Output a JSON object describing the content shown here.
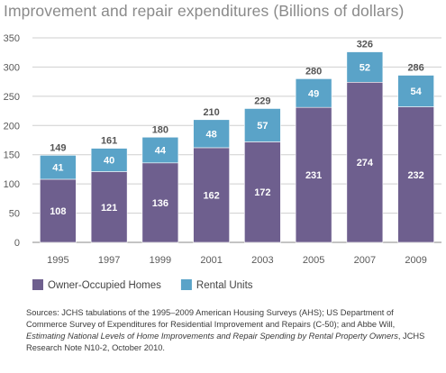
{
  "chart_data": {
    "type": "bar",
    "stacked": true,
    "title": "Improvement and repair expenditures (Billions of dollars)",
    "categories": [
      "1995",
      "1997",
      "1999",
      "2001",
      "2003",
      "2005",
      "2007",
      "2009"
    ],
    "series": [
      {
        "name": "Owner-Occupied Homes",
        "color": "#6e5f8e",
        "values": [
          108,
          121,
          136,
          162,
          172,
          231,
          274,
          232
        ]
      },
      {
        "name": "Rental Units",
        "color": "#5aa3c8",
        "values": [
          41,
          40,
          44,
          48,
          57,
          49,
          52,
          54
        ]
      }
    ],
    "totals": [
      149,
      161,
      180,
      210,
      229,
      280,
      326,
      286
    ],
    "ylim": [
      0,
      350
    ],
    "yticks": [
      0,
      50,
      100,
      150,
      200,
      250,
      300,
      350
    ],
    "grid": true,
    "legend_position": "bottom-left"
  },
  "sources": {
    "text1": "Sources: JCHS tabulations of the 1995–2009 American Housing Surveys (AHS); US Department of Commerce Survey of Expenditures for Residential Improvement and Repairs (C-50); and Abbe Will, ",
    "italic": "Estimating National Levels of Home Improvements and Repair Spending by Rental Property Owners",
    "text2": ", JCHS Research Note N10-2, October 2010."
  }
}
